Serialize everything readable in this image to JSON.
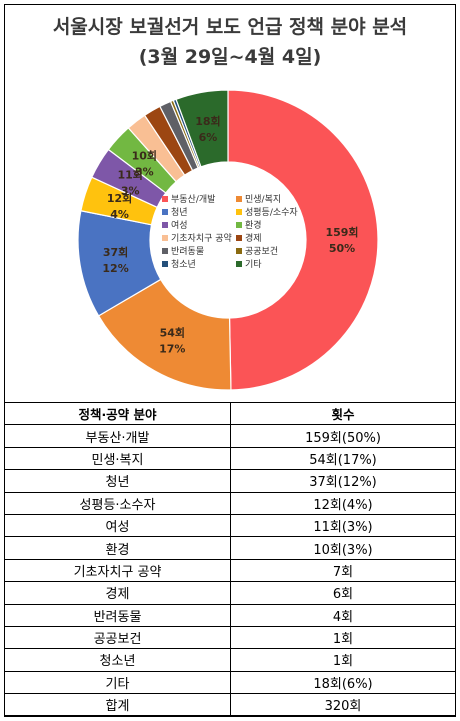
{
  "title_line1": "서울시장 보궐선거 보도 언급 정책 분야 분석",
  "title_line2": "(3월 29일~4월 4일)",
  "chart_data": {
    "type": "pie",
    "donut": true,
    "legend_position": "center",
    "slices": [
      {
        "label": "부동산·개발",
        "legend": "부동산/개발",
        "value": 159,
        "count_label": "159회",
        "pct_label": "50%",
        "color": "#fb5456"
      },
      {
        "label": "민생·복지",
        "legend": "민생/복지",
        "value": 54,
        "count_label": "54회",
        "pct_label": "17%",
        "color": "#ee8a34"
      },
      {
        "label": "청년",
        "legend": "청년",
        "value": 37,
        "count_label": "37회",
        "pct_label": "12%",
        "color": "#4a73c2"
      },
      {
        "label": "성평등·소수자",
        "legend": "성평등/소수자",
        "value": 12,
        "count_label": "12회",
        "pct_label": "4%",
        "color": "#ffc20e"
      },
      {
        "label": "여성",
        "legend": "여성",
        "value": 11,
        "count_label": "11회",
        "pct_label": "3%",
        "color": "#7e57a8"
      },
      {
        "label": "환경",
        "legend": "환경",
        "value": 10,
        "count_label": "10회",
        "pct_label": "3%",
        "color": "#72b842"
      },
      {
        "label": "기초자치구 공약",
        "legend": "기초자치구 공약",
        "value": 7,
        "count_label": "",
        "pct_label": "",
        "color": "#f9bf94"
      },
      {
        "label": "경제",
        "legend": "경제",
        "value": 6,
        "count_label": "",
        "pct_label": "",
        "color": "#9c4612"
      },
      {
        "label": "반려동물",
        "legend": "반려동물",
        "value": 4,
        "count_label": "",
        "pct_label": "",
        "color": "#5f6066"
      },
      {
        "label": "공공보건",
        "legend": "공공보건",
        "value": 1,
        "count_label": "",
        "pct_label": "",
        "color": "#8a6a10"
      },
      {
        "label": "청소년",
        "legend": "청소년",
        "value": 1,
        "count_label": "",
        "pct_label": "",
        "color": "#24507a"
      },
      {
        "label": "기타",
        "legend": "기타",
        "value": 18,
        "count_label": "18회",
        "pct_label": "6%",
        "color": "#2b6a2b"
      }
    ]
  },
  "table": {
    "headers": [
      "정책·공약 분야",
      "횟수"
    ],
    "rows": [
      [
        "부동산·개발",
        "159회(50%)"
      ],
      [
        "민생·복지",
        "54회(17%)"
      ],
      [
        "청년",
        "37회(12%)"
      ],
      [
        "성평등·소수자",
        "12회(4%)"
      ],
      [
        "여성",
        "11회(3%)"
      ],
      [
        "환경",
        "10회(3%)"
      ],
      [
        "기초자치구 공약",
        "7회"
      ],
      [
        "경제",
        "6회"
      ],
      [
        "반려동물",
        "4회"
      ],
      [
        "공공보건",
        "1회"
      ],
      [
        "청소년",
        "1회"
      ],
      [
        "기타",
        "18회(6%)"
      ],
      [
        "합계",
        "320회"
      ]
    ]
  }
}
